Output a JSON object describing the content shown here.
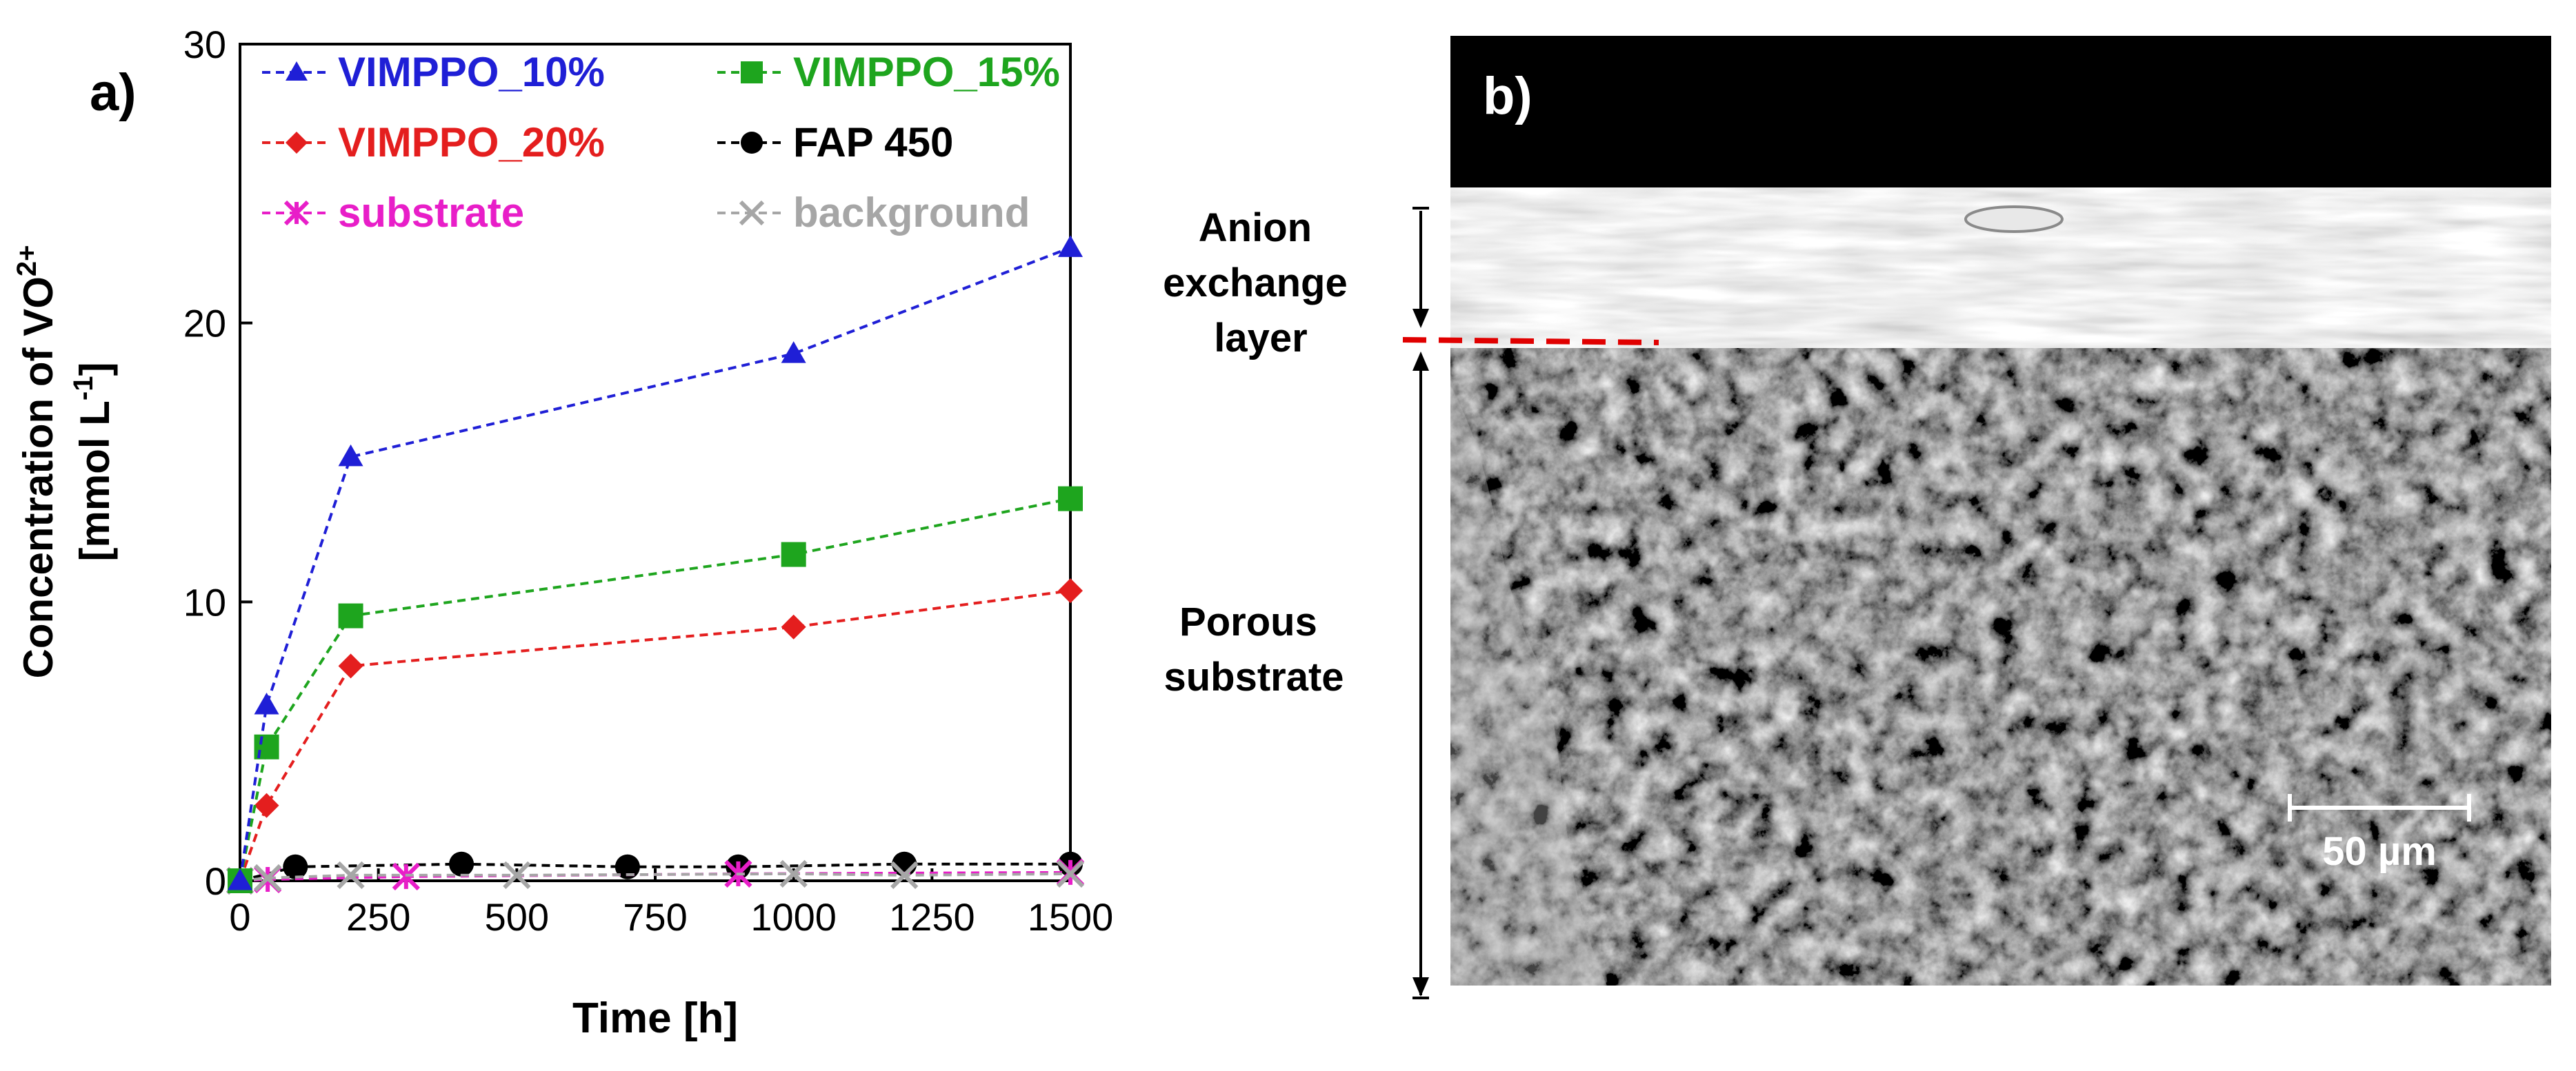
{
  "panel_a_label": "a)",
  "panel_b_label": "b)",
  "chart_data": {
    "type": "line",
    "title": "",
    "xlabel": "Time [h]",
    "ylabel_line1": "Concentration of VO",
    "ylabel_sup1": "2+",
    "ylabel_line2": "[mmol L",
    "ylabel_sup2": "-1",
    "ylabel_close": "]",
    "xlim": [
      0,
      1500
    ],
    "ylim": [
      0,
      30
    ],
    "xticks": [
      0,
      250,
      500,
      750,
      1000,
      1250,
      1500
    ],
    "xtick_labels": [
      "0",
      "250",
      "500",
      "750",
      "1000",
      "1250",
      "1500"
    ],
    "yticks": [
      0,
      10,
      20,
      30
    ],
    "ytick_labels": [
      "0",
      "10",
      "20",
      "30"
    ],
    "grid": false,
    "legend_position": "top",
    "series": [
      {
        "name": "VIMPPO_10%",
        "color": "#1f1fd6",
        "marker": "triangle",
        "x": [
          0,
          48,
          200,
          1000,
          1500
        ],
        "y": [
          0,
          6.3,
          15.2,
          18.9,
          22.7
        ]
      },
      {
        "name": "VIMPPO_15%",
        "color": "#1ea51e",
        "marker": "square",
        "x": [
          0,
          48,
          200,
          1000,
          1500
        ],
        "y": [
          0,
          4.8,
          9.5,
          11.7,
          13.7
        ]
      },
      {
        "name": "VIMPPO_20%",
        "color": "#e41e1e",
        "marker": "diamond",
        "x": [
          0,
          48,
          200,
          1000,
          1500
        ],
        "y": [
          0,
          2.7,
          7.7,
          9.1,
          10.4
        ]
      },
      {
        "name": "FAP 450",
        "color": "#000000",
        "marker": "circle",
        "x": [
          0,
          100,
          400,
          700,
          900,
          1200,
          1500
        ],
        "y": [
          0,
          0.5,
          0.6,
          0.5,
          0.5,
          0.6,
          0.6
        ]
      },
      {
        "name": "substrate",
        "color": "#e81ec8",
        "marker": "asterisk",
        "x": [
          0,
          50,
          300,
          900,
          1500
        ],
        "y": [
          0,
          0.05,
          0.15,
          0.25,
          0.3
        ]
      },
      {
        "name": "background",
        "color": "#a6a6a6",
        "marker": "x",
        "x": [
          0,
          50,
          200,
          500,
          1000,
          1200,
          1500
        ],
        "y": [
          0,
          0.1,
          0.2,
          0.2,
          0.25,
          0.2,
          0.25
        ]
      }
    ]
  },
  "sem": {
    "annotation_top_line1": "Anion",
    "annotation_top_line2": "exchange",
    "annotation_top_line3": "layer",
    "annotation_bottom_line1": "Porous",
    "annotation_bottom_line2": "substrate",
    "scale_bar_label": "50 µm",
    "divider_color": "#e00000"
  }
}
